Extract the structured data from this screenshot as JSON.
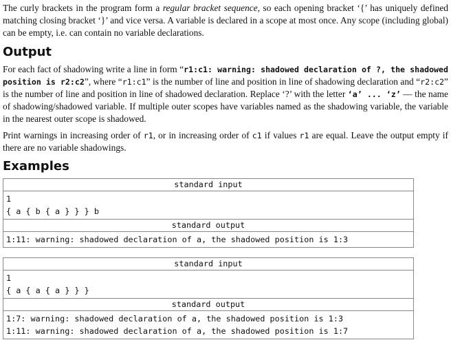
{
  "intro": {
    "t1": "The curly brackets in the program form a ",
    "em": "regular bracket sequence",
    "t2": ", so each opening bracket ‘{’ has uniquely defined matching closing bracket ‘}’ and vice versa. A variable is declared in a scope at most once. Any scope (including global) can be empty, i.e. can contain no variable declarations."
  },
  "output_heading": "Output",
  "output_p1": {
    "t1": "For each fact of shadowing write a line in form “",
    "m1": "r1:c1: warning: shadowed declaration of ?, the shadowed position is r2:c2",
    "t2": "”, where “",
    "m2": "r1:c1",
    "t3": "” is the number of line and position in line of shadowing declaration and “",
    "m3": "r2:c2",
    "t4": "” is the number of line and position in line of shadowed declaration. Replace ‘?’ with the letter ",
    "m4": "‘a’ ... ‘z’",
    "t5": " — the name of shadowing/shadowed variable. If multiple outer scopes have variables named as the shadowing variable, the variable in the nearest outer scope is shadowed."
  },
  "output_p2": {
    "t1": "Print warnings in increasing order of ",
    "m1": "r1",
    "t2": ", or in increasing order of ",
    "m2": "c1",
    "t3": " if values ",
    "m3": "r1",
    "t4": " are equal. Leave the output empty if there are no variable shadowings."
  },
  "examples_heading": "Examples",
  "examples": [
    {
      "input_label": "standard input",
      "input_lines": [
        "1",
        "{ a { b { a } } } b"
      ],
      "output_label": "standard output",
      "output_lines": [
        "1:11: warning: shadowed declaration of a, the shadowed position is 1:3"
      ]
    },
    {
      "input_label": "standard input",
      "input_lines": [
        "1",
        "{ a { a { a } } }"
      ],
      "output_label": "standard output",
      "output_lines": [
        "1:7: warning: shadowed declaration of a, the shadowed position is 1:3",
        "1:11: warning: shadowed declaration of a, the shadowed position is 1:7"
      ]
    }
  ]
}
